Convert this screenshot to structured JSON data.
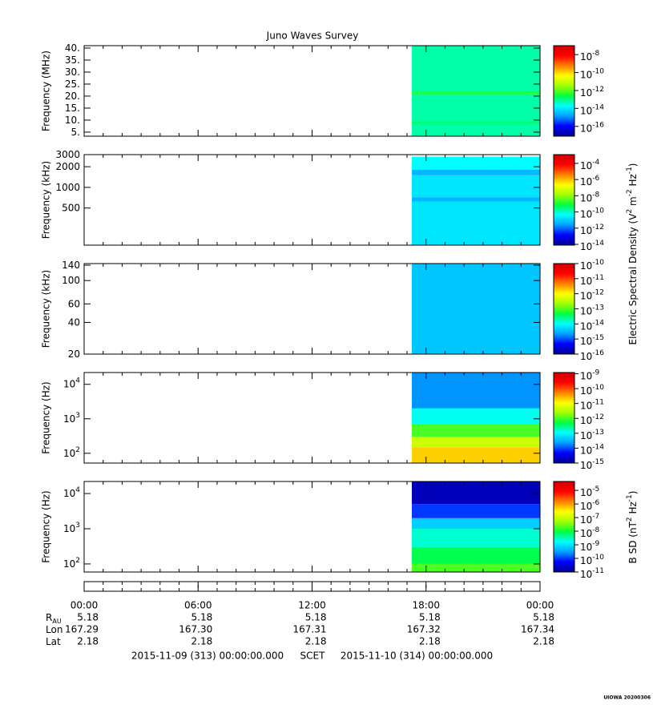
{
  "title": "Juno Waves Survey",
  "colormap": [
    "#00008c",
    "#0000ff",
    "#00a0ff",
    "#00ffff",
    "#00ff40",
    "#a0ff00",
    "#ffff00",
    "#ff8000",
    "#ff0000",
    "#d00000"
  ],
  "xlim": [
    0,
    24
  ],
  "xticks": [
    {
      "value": 0,
      "label": "00:00"
    },
    {
      "value": 6,
      "label": "06:00"
    },
    {
      "value": 12,
      "label": "12:00"
    },
    {
      "value": 18,
      "label": "18:00"
    },
    {
      "value": 24,
      "label": "00:00"
    }
  ],
  "xminorticks": [
    1,
    2,
    3,
    4,
    5,
    7,
    8,
    9,
    10,
    11,
    13,
    14,
    15,
    16,
    17,
    19,
    20,
    21,
    22,
    23
  ],
  "x_start": 17.25,
  "chart_data": [
    {
      "type": "heatmap",
      "ylabel": "Frequency (MHz)",
      "yscale": "linear",
      "ylim": [
        3.3,
        41
      ],
      "yticks": [
        {
          "value": 40,
          "label": "40."
        },
        {
          "value": 35,
          "label": "35."
        },
        {
          "value": 30,
          "label": "30."
        },
        {
          "value": 25,
          "label": "25."
        },
        {
          "value": 20,
          "label": "20."
        },
        {
          "value": 15,
          "label": "15."
        },
        {
          "value": 10,
          "label": "10."
        },
        {
          "value": 5,
          "label": "5."
        }
      ],
      "clim": [
        8e-18,
        1e-07
      ],
      "cticks": [
        {
          "value": 1e-08,
          "label": "10",
          "sup": "-8"
        },
        {
          "value": 1e-10,
          "label": "10",
          "sup": "-10"
        },
        {
          "value": 1e-12,
          "label": "10",
          "sup": "-12"
        },
        {
          "value": 1e-14,
          "label": "10",
          "sup": "-14"
        },
        {
          "value": 1e-16,
          "label": "10",
          "sup": "-16"
        }
      ],
      "bands": [
        {
          "f": [
            3.3,
            41
          ],
          "z": 6e-14
        },
        {
          "f": [
            8.5,
            9.3
          ],
          "z": 1.5e-13
        },
        {
          "f": [
            20.6,
            21.8
          ],
          "z": 5e-13
        }
      ]
    },
    {
      "type": "heatmap",
      "ylabel": "Frequency (kHz)",
      "yscale": "log",
      "ylim": [
        144,
        3000
      ],
      "yticks": [
        3000,
        2000,
        1000,
        500
      ],
      "clim": [
        8e-15,
        0.0012
      ],
      "cticks": [
        {
          "value": 0.0001,
          "label": "10",
          "sup": "-4"
        },
        {
          "value": 1e-06,
          "label": "10",
          "sup": "-6"
        },
        {
          "value": 1e-08,
          "label": "10",
          "sup": "-8"
        },
        {
          "value": 1e-10,
          "label": "10",
          "sup": "-10"
        },
        {
          "value": 1e-12,
          "label": "10",
          "sup": "-12"
        },
        {
          "value": 1e-14,
          "label": "10",
          "sup": "-14"
        }
      ],
      "colorbar_label": [
        "Electric Spectral Density (V",
        "2",
        " m",
        "-2",
        " Hz",
        "-1",
        ")"
      ],
      "bands": [
        {
          "f": [
            144,
            620
          ],
          "z": 2e-11
        },
        {
          "f": [
            620,
            720
          ],
          "z": 5e-12
        },
        {
          "f": [
            720,
            1500
          ],
          "z": 2e-11
        },
        {
          "f": [
            1500,
            1800
          ],
          "z": 5e-12
        },
        {
          "f": [
            1800,
            2800
          ],
          "z": 4e-11
        }
      ]
    },
    {
      "type": "heatmap",
      "ylabel": "Frequency (kHz)",
      "yscale": "log",
      "ylim": [
        20,
        145
      ],
      "yticks": [
        140,
        100,
        60,
        40,
        20
      ],
      "clim": [
        1e-16,
        1e-10
      ],
      "cticks": [
        {
          "value": 1e-10,
          "label": "10",
          "sup": "-10"
        },
        {
          "value": 1e-11,
          "label": "10",
          "sup": "-11"
        },
        {
          "value": 1e-12,
          "label": "10",
          "sup": "-12"
        },
        {
          "value": 1e-13,
          "label": "10",
          "sup": "-13"
        },
        {
          "value": 1e-14,
          "label": "10",
          "sup": "-14"
        },
        {
          "value": 1e-15,
          "label": "10",
          "sup": "-15"
        },
        {
          "value": 1e-16,
          "label": "10",
          "sup": "-16"
        }
      ],
      "bands": [
        {
          "f": [
            20,
            145
          ],
          "z": 4e-15
        }
      ]
    },
    {
      "type": "heatmap",
      "ylabel": "Frequency (Hz)",
      "yscale": "log",
      "ylim": [
        52,
        22000
      ],
      "yticks": [
        {
          "value": 10000,
          "label": "10",
          "sup": "4"
        },
        {
          "value": 1000,
          "label": "10",
          "sup": "3"
        },
        {
          "value": 100,
          "label": "10",
          "sup": "2"
        }
      ],
      "clim": [
        1e-15,
        1.2e-09
      ],
      "cticks": [
        {
          "value": 1e-09,
          "label": "10",
          "sup": "-9"
        },
        {
          "value": 1e-10,
          "label": "10",
          "sup": "-10"
        },
        {
          "value": 1e-11,
          "label": "10",
          "sup": "-11"
        },
        {
          "value": 1e-12,
          "label": "10",
          "sup": "-12"
        },
        {
          "value": 1e-13,
          "label": "10",
          "sup": "-13"
        },
        {
          "value": 1e-14,
          "label": "10",
          "sup": "-14"
        },
        {
          "value": 1e-15,
          "label": "10",
          "sup": "-15"
        }
      ],
      "bands": [
        {
          "f": [
            52,
            150
          ],
          "z": 2e-11
        },
        {
          "f": [
            150,
            300
          ],
          "z": 5e-12
        },
        {
          "f": [
            300,
            700
          ],
          "z": 1e-12
        },
        {
          "f": [
            700,
            2000
          ],
          "z": 1.2e-13
        },
        {
          "f": [
            2000,
            22000
          ],
          "z": 2e-14
        }
      ]
    },
    {
      "type": "heatmap",
      "ylabel": "Frequency (Hz)",
      "yscale": "log",
      "ylim": [
        59,
        22000
      ],
      "yticks": [
        {
          "value": 10000,
          "label": "10",
          "sup": "4"
        },
        {
          "value": 1000,
          "label": "10",
          "sup": "3"
        },
        {
          "value": 100,
          "label": "10",
          "sup": "2"
        }
      ],
      "clim": [
        1e-11,
        4.5e-05
      ],
      "cticks": [
        {
          "value": 1e-05,
          "label": "10",
          "sup": "-5"
        },
        {
          "value": 1e-06,
          "label": "10",
          "sup": "-6"
        },
        {
          "value": 1e-07,
          "label": "10",
          "sup": "-7"
        },
        {
          "value": 1e-08,
          "label": "10",
          "sup": "-8"
        },
        {
          "value": 1e-09,
          "label": "10",
          "sup": "-9"
        },
        {
          "value": 1e-10,
          "label": "10",
          "sup": "-10"
        },
        {
          "value": 1e-11,
          "label": "10",
          "sup": "-11"
        }
      ],
      "colorbar_label": [
        "B SD (nT",
        "2",
        " Hz",
        "-1",
        ")"
      ],
      "bands": [
        {
          "f": [
            59,
            100
          ],
          "z": 2e-08
        },
        {
          "f": [
            100,
            300
          ],
          "z": 8e-09
        },
        {
          "f": [
            300,
            1000
          ],
          "z": 2.5e-09
        },
        {
          "f": [
            1000,
            2000
          ],
          "z": 7e-10
        },
        {
          "f": [
            2000,
            5000
          ],
          "z": 1e-10
        },
        {
          "f": [
            5000,
            22000
          ],
          "z": 2e-11
        }
      ]
    }
  ],
  "ephemeris": [
    {
      "label": "R",
      "sub": "AU",
      "values": [
        "5.18",
        "5.18",
        "5.18",
        "5.18",
        "5.18"
      ]
    },
    {
      "label": "Lon",
      "values": [
        "167.29",
        "167.30",
        "167.31",
        "167.32",
        "167.34"
      ]
    },
    {
      "label": "Lat",
      "values": [
        "2.18",
        "2.18",
        "2.18",
        "2.18",
        "2.18"
      ]
    }
  ],
  "scet": {
    "start": "2015-11-09 (313) 00:00:00.000",
    "label": "SCET",
    "end": "2015-11-10 (314) 00:00:00.000"
  },
  "footer": "UIOWA 20200306"
}
